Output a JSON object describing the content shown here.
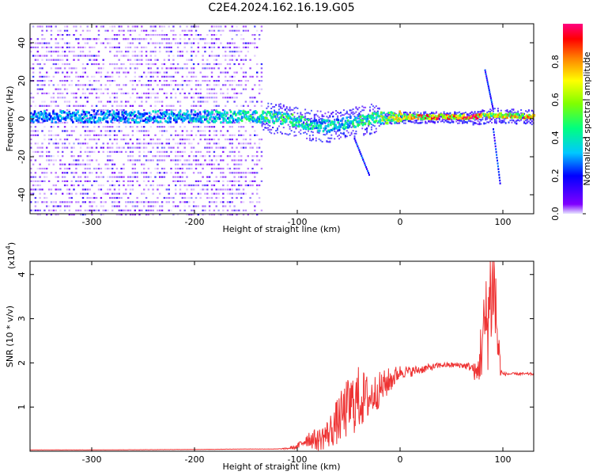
{
  "title": "C2E4.2024.162.16.19.G05",
  "colorbar": {
    "label": "Normalized spectral amplitude",
    "ticks": [
      "0.0",
      "0.2",
      "0.4",
      "0.6",
      "0.8"
    ],
    "tick_values": [
      0.0,
      0.2,
      0.4,
      0.6,
      0.8
    ],
    "range": [
      0,
      1
    ],
    "colors": [
      "#e6e6ff",
      "#8000ff",
      "#0000ff",
      "#00c8ff",
      "#00ff80",
      "#80ff00",
      "#ffff00",
      "#ff8000",
      "#ff0000",
      "#ff0080"
    ]
  },
  "colors": {
    "snr_line": "#ee3333",
    "frame": "#000000"
  },
  "chart_data": [
    {
      "type": "heatmap",
      "xlabel": "Height of straight line (km)",
      "ylabel": "Frequency (Hz)",
      "xlim": [
        -360,
        130
      ],
      "ylim": [
        -50,
        50
      ],
      "x_ticks": [
        -300,
        -200,
        -100,
        0,
        100
      ],
      "x_tick_labels": [
        "-300",
        "-200",
        "-100",
        "0",
        "100"
      ],
      "y_ticks": [
        40,
        20,
        0,
        -20,
        -40
      ],
      "y_tick_labels": [
        "40",
        "20",
        "0",
        "-20",
        "-40"
      ],
      "main_band": [
        {
          "x": -360,
          "freq": 1,
          "amp": 0.35
        },
        {
          "x": -250,
          "freq": 1,
          "amp": 0.35
        },
        {
          "x": -180,
          "freq": 1,
          "amp": 0.4
        },
        {
          "x": -140,
          "freq": 1,
          "amp": 0.5
        },
        {
          "x": -110,
          "freq": 0,
          "amp": 0.55
        },
        {
          "x": -90,
          "freq": -3,
          "amp": 0.45
        },
        {
          "x": -70,
          "freq": -4,
          "amp": 0.45
        },
        {
          "x": -50,
          "freq": -2,
          "amp": 0.45
        },
        {
          "x": -30,
          "freq": 0,
          "amp": 0.55
        },
        {
          "x": 0,
          "freq": 1,
          "amp": 0.75
        },
        {
          "x": 30,
          "freq": 1,
          "amp": 0.9
        },
        {
          "x": 70,
          "freq": 1,
          "amp": 0.95
        },
        {
          "x": 90,
          "freq": 2,
          "amp": 0.7
        },
        {
          "x": 130,
          "freq": 1,
          "amp": 0.95
        }
      ],
      "streaks": [
        {
          "from": [
            -45,
            -10
          ],
          "to": [
            -30,
            -30
          ]
        },
        {
          "from": [
            82,
            26
          ],
          "to": [
            90,
            5
          ]
        },
        {
          "from": [
            90,
            -5
          ],
          "to": [
            97,
            -35
          ]
        }
      ]
    },
    {
      "type": "line",
      "xlabel": "Height of straight line (km)",
      "ylabel": "SNR (10 * v/v)",
      "y_multiplier_label": "(x10",
      "y_multiplier_exponent": "4",
      "xlim": [
        -360,
        130
      ],
      "ylim": [
        0,
        4.3
      ],
      "x_ticks": [
        -300,
        -200,
        -100,
        0,
        100
      ],
      "x_tick_labels": [
        "-300",
        "-200",
        "-100",
        "0",
        "100"
      ],
      "y_ticks": [
        1,
        2,
        3,
        4
      ],
      "y_tick_labels": [
        "1",
        "2",
        "3",
        "4"
      ],
      "series": [
        {
          "x": [
            -360,
            -300,
            -200,
            -150,
            -120,
            -110,
            -100,
            -90,
            -80,
            -70,
            -60,
            -50,
            -40,
            -30,
            -20,
            -10,
            0,
            10,
            20,
            30,
            40,
            50,
            60,
            70,
            75,
            80,
            85,
            88,
            90,
            92,
            95,
            98,
            100,
            110,
            120,
            130
          ],
          "y": [
            0.03,
            0.03,
            0.04,
            0.05,
            0.05,
            0.06,
            0.1,
            0.3,
            0.25,
            0.4,
            0.7,
            1.0,
            1.2,
            1.2,
            1.4,
            1.6,
            1.8,
            1.8,
            1.85,
            1.9,
            1.95,
            1.95,
            1.95,
            1.9,
            1.7,
            2.5,
            3.0,
            3.5,
            4.2,
            3.6,
            2.5,
            1.8,
            1.75,
            1.75,
            1.75,
            1.75
          ],
          "noise": [
            0.002,
            0.002,
            0.003,
            0.004,
            0.005,
            0.02,
            0.06,
            0.2,
            0.25,
            0.35,
            0.55,
            0.7,
            0.75,
            0.5,
            0.4,
            0.3,
            0.15,
            0.12,
            0.1,
            0.08,
            0.06,
            0.06,
            0.07,
            0.1,
            0.3,
            0.9,
            1.2,
            1.6,
            1.7,
            1.4,
            0.8,
            0.1,
            0.04,
            0.03,
            0.03,
            0.03
          ]
        }
      ]
    }
  ]
}
